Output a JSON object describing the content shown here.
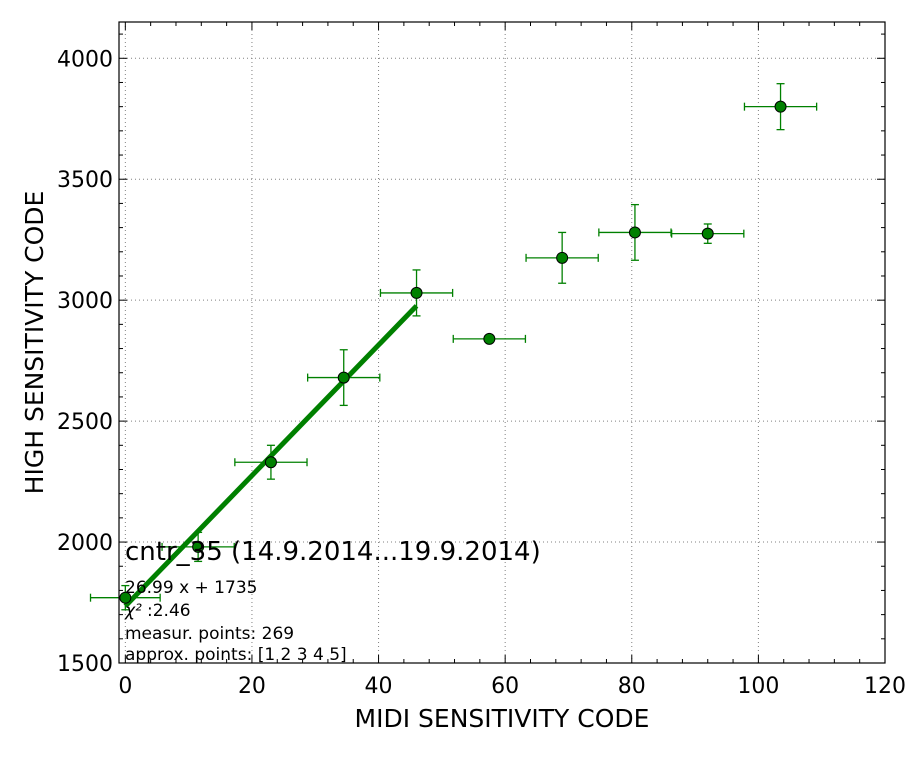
{
  "chart_data": {
    "type": "scatter",
    "xlabel": "MIDI SENSITIVITY CODE",
    "ylabel": "HIGH SENSITIVITY CODE",
    "xlim": [
      -1,
      120
    ],
    "ylim": [
      1500,
      4150
    ],
    "xticks": [
      0,
      20,
      40,
      60,
      80,
      100,
      120
    ],
    "yticks": [
      1500,
      2000,
      2500,
      3000,
      3500,
      4000
    ],
    "xtick_labels": [
      "0",
      "20",
      "40",
      "60",
      "80",
      "100",
      "120"
    ],
    "ytick_labels": [
      "1500",
      "2000",
      "2500",
      "3000",
      "3500",
      "4000"
    ],
    "grid": true,
    "series": [
      {
        "points": [
          {
            "x": 0,
            "y": 1770,
            "xerr": 5.5,
            "yerr": 50
          },
          {
            "x": 11.5,
            "y": 1980,
            "xerr": 5.7,
            "yerr": 60
          },
          {
            "x": 23,
            "y": 2330,
            "xerr": 5.7,
            "yerr": 70
          },
          {
            "x": 34.5,
            "y": 2680,
            "xerr": 5.7,
            "yerr": 115
          },
          {
            "x": 46,
            "y": 3030,
            "xerr": 5.7,
            "yerr": 95
          },
          {
            "x": 57.5,
            "y": 2840,
            "xerr": 5.7,
            "yerr": 0
          },
          {
            "x": 69,
            "y": 3175,
            "xerr": 5.7,
            "yerr": 105
          },
          {
            "x": 80.5,
            "y": 3280,
            "xerr": 5.7,
            "yerr": 115
          },
          {
            "x": 92,
            "y": 3275,
            "xerr": 5.7,
            "yerr": 40
          },
          {
            "x": 103.5,
            "y": 3800,
            "xerr": 5.7,
            "yerr": 95
          }
        ]
      }
    ],
    "fit_line": {
      "x": [
        0,
        46
      ],
      "y": [
        1735,
        2976.5
      ]
    },
    "annotations": {
      "title": "cntr_35 (14.9.2014...19.9.2014)",
      "equation": "26.99 x + 1735",
      "chi2_symbol": "χ²",
      "chi2_value": ":2.46",
      "measur_points": "measur. points: 269",
      "approx_points": "approx. points: [1 2 3 4 5]"
    },
    "colors": {
      "series": "#008000",
      "marker_edge": "#000000",
      "fit": "#008000",
      "grid": "#808080"
    }
  }
}
